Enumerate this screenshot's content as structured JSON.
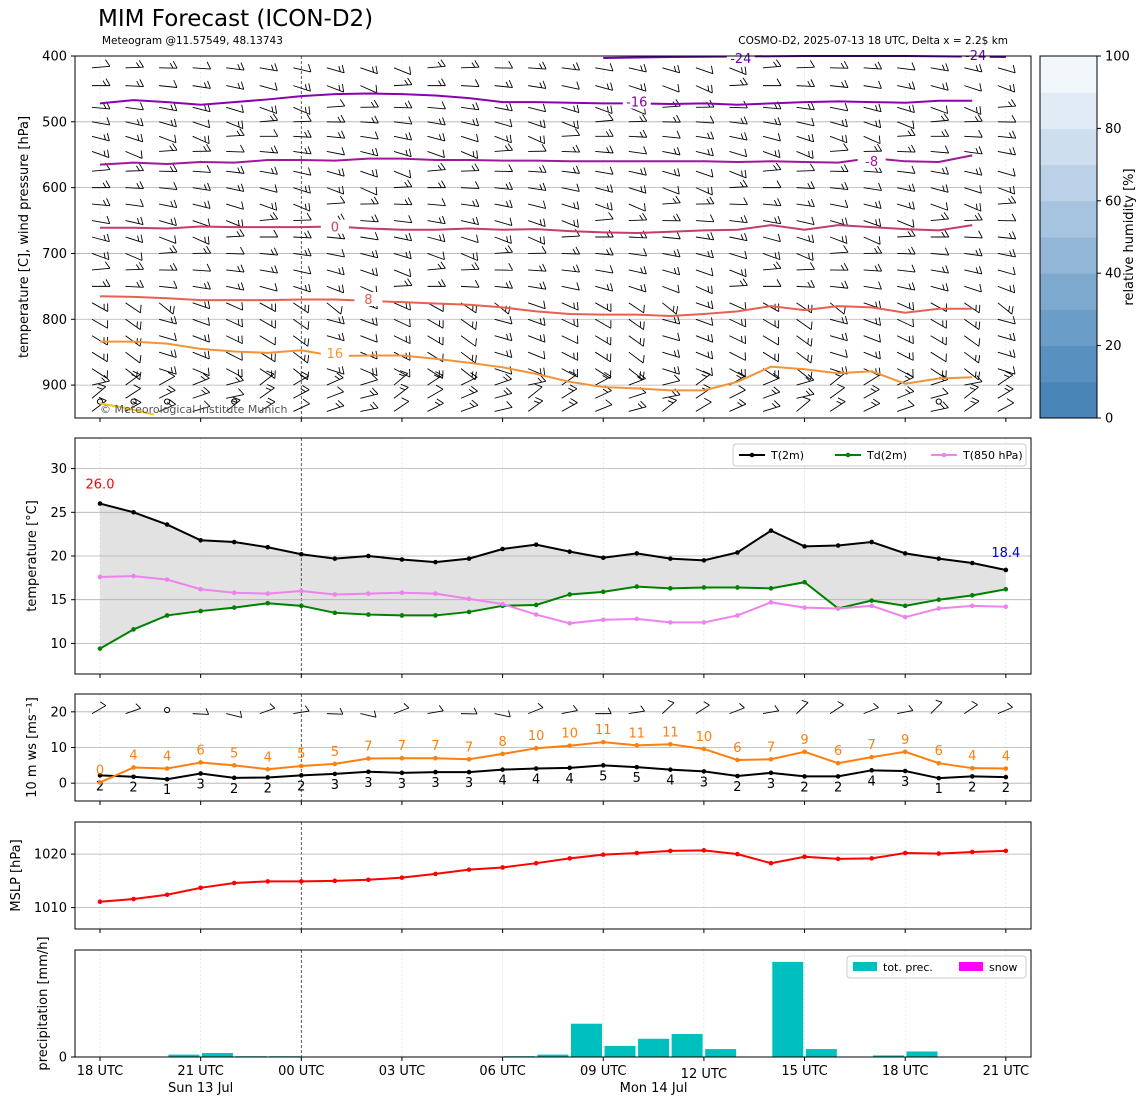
{
  "header": {
    "title": "MIM Forecast (ICON-D2)",
    "subtitle_left": "Meteogram @11.57549, 48.13743",
    "subtitle_right": "COSMO-D2, 2025-07-13 18 UTC, Delta x = 2.2$ km",
    "credit": "© Meteorological Institute Munich"
  },
  "colors": {
    "t2m": "#000000",
    "td2m": "#008000",
    "t850": "#ee82ee",
    "wind10": "#ff7f0e",
    "mslp": "#ff0000",
    "precip": "#00bfbf",
    "snow": "#ff00ff",
    "fill": "#e2e2e2",
    "rh_scale": [
      "#4a85b8",
      "#5890c0",
      "#6a9dc8",
      "#7ea9cf",
      "#92b6d7",
      "#a6c4df",
      "#bad1e7",
      "#cddfef",
      "#e0ebf6",
      "#f2f7fc"
    ]
  },
  "time_axis": {
    "ticks": [
      "18 UTC",
      "21 UTC",
      "00 UTC",
      "03 UTC",
      "06 UTC",
      "09 UTC",
      "12 UTC",
      "15 UTC",
      "18 UTC",
      "21 UTC"
    ],
    "day_labels": [
      "Sun 13 Jul",
      "Mon 14 Jul"
    ],
    "hours": [
      0,
      3,
      6,
      9,
      12,
      15,
      18,
      21,
      24,
      27
    ]
  },
  "chart_data": [
    {
      "type": "line",
      "panel": "upper-air",
      "ylabel": "temperature [C], wind pressure [hPa]",
      "y_ticks": [
        400,
        500,
        600,
        700,
        800,
        900
      ],
      "ylim": [
        950,
        400
      ],
      "y_inverted": true,
      "colorbar": {
        "label": "relative humidity [%]",
        "ticks": [
          0,
          20,
          40,
          60,
          80,
          100
        ]
      },
      "contour_labels": [
        "-24",
        "-24",
        "-16",
        "-8",
        "0",
        "8",
        "16"
      ],
      "isotherms": [
        {
          "level": "-16",
          "color": "#8b00b0",
          "p": [
            472,
            467,
            470,
            474,
            470,
            466,
            461,
            458,
            457,
            458,
            460,
            464,
            470,
            470,
            471,
            472,
            472,
            473,
            472,
            474,
            472,
            470,
            469,
            470,
            471,
            468,
            468
          ]
        },
        {
          "level": "-8",
          "color": "#a0189a",
          "p": [
            565,
            562,
            564,
            561,
            562,
            558,
            558,
            559,
            556,
            556,
            558,
            558,
            559,
            559,
            560,
            560,
            560,
            560,
            560,
            561,
            560,
            561,
            562,
            555,
            560,
            561,
            551
          ]
        },
        {
          "level": "0",
          "color": "#c53c70",
          "p": [
            661,
            661,
            662,
            659,
            660,
            660,
            660,
            659,
            662,
            664,
            664,
            662,
            664,
            663,
            666,
            668,
            669,
            667,
            665,
            664,
            657,
            664,
            657,
            660,
            663,
            665,
            657
          ]
        },
        {
          "level": "8",
          "color": "#e8604e",
          "p": [
            765,
            766,
            768,
            771,
            771,
            771,
            770,
            770,
            772,
            774,
            776,
            778,
            782,
            788,
            792,
            793,
            793,
            795,
            792,
            788,
            780,
            786,
            780,
            782,
            790,
            784,
            784
          ]
        },
        {
          "level": "16",
          "color": "#f39339",
          "p": [
            834,
            834,
            837,
            845,
            849,
            851,
            847,
            856,
            855,
            855,
            860,
            866,
            873,
            883,
            895,
            903,
            905,
            908,
            908,
            895,
            872,
            876,
            882,
            879,
            898,
            890,
            888
          ]
        }
      ]
    },
    {
      "type": "line",
      "panel": "surface-temperature",
      "ylabel": "temperature [$^\\circ$C]",
      "ylim": [
        6.5,
        33.5
      ],
      "y_ticks": [
        10,
        15,
        20,
        25,
        30
      ],
      "legend": "top-right",
      "annotations": {
        "max_label": "26.0",
        "last_label": "18.4"
      },
      "x_hours": [
        0,
        1,
        2,
        3,
        4,
        5,
        6,
        7,
        8,
        9,
        10,
        11,
        12,
        13,
        14,
        15,
        16,
        17,
        18,
        19,
        20,
        21,
        22,
        23,
        24,
        25,
        26,
        27
      ],
      "series": [
        {
          "name": "T(2m)",
          "values": [
            26.0,
            25.0,
            23.6,
            21.8,
            21.6,
            21.0,
            20.2,
            19.7,
            20.0,
            19.6,
            19.3,
            19.7,
            20.8,
            21.3,
            20.5,
            19.8,
            20.3,
            19.7,
            19.5,
            20.4,
            22.9,
            21.1,
            21.2,
            21.6,
            20.3,
            19.7,
            19.2,
            18.4
          ]
        },
        {
          "name": "Td(2m)",
          "values": [
            9.4,
            11.6,
            13.2,
            13.7,
            14.1,
            14.6,
            14.3,
            13.5,
            13.3,
            13.2,
            13.2,
            13.6,
            14.3,
            14.4,
            15.6,
            15.9,
            16.5,
            16.3,
            16.4,
            16.4,
            16.3,
            17.0,
            14.0,
            14.9,
            14.3,
            15.0,
            15.5,
            16.2
          ]
        },
        {
          "name": "T(850 hPa)",
          "values": [
            17.6,
            17.7,
            17.3,
            16.2,
            15.8,
            15.7,
            16.0,
            15.6,
            15.7,
            15.8,
            15.7,
            15.1,
            14.5,
            13.3,
            12.3,
            12.7,
            12.8,
            12.4,
            12.4,
            13.2,
            14.7,
            14.1,
            14.0,
            14.3,
            13.0,
            14.0,
            14.3,
            14.2
          ]
        }
      ]
    },
    {
      "type": "line",
      "panel": "wind-10m",
      "ylabel": "10 m ws [ms$^{-1}$]",
      "ylim": [
        -5,
        25
      ],
      "y_ticks": [
        0,
        10,
        20
      ],
      "x_hours": [
        0,
        1,
        2,
        3,
        4,
        5,
        6,
        7,
        8,
        9,
        10,
        11,
        12,
        13,
        14,
        15,
        16,
        17,
        18,
        19,
        20,
        21,
        22,
        23,
        24,
        25,
        26,
        27
      ],
      "series": [
        {
          "name": "wind speed",
          "values": [
            2.2,
            1.8,
            1.1,
            2.7,
            1.5,
            1.6,
            2.2,
            2.6,
            3.2,
            2.9,
            3.1,
            3.1,
            3.8,
            4.1,
            4.3,
            5.0,
            4.5,
            3.8,
            3.3,
            2.0,
            2.9,
            1.9,
            1.9,
            3.6,
            3.4,
            1.4,
            1.9,
            1.7
          ],
          "labels": [
            "2",
            "2",
            "1",
            "3",
            "2",
            "2",
            "2",
            "3",
            "3",
            "3",
            "3",
            "3",
            "4",
            "4",
            "4",
            "5",
            "5",
            "4",
            "3",
            "2",
            "3",
            "2",
            "2",
            "4",
            "3",
            "1",
            "2",
            "2"
          ]
        },
        {
          "name": "gusts",
          "values": [
            0.2,
            4.4,
            4.1,
            5.8,
            5.0,
            3.9,
            4.8,
            5.4,
            6.9,
            7.0,
            7.0,
            6.7,
            8.2,
            9.8,
            10.5,
            11.5,
            10.6,
            10.9,
            9.6,
            6.5,
            6.7,
            8.8,
            5.6,
            7.3,
            8.8,
            5.6,
            4.2,
            4.1
          ],
          "labels": [
            "0",
            "4",
            "4",
            "6",
            "5",
            "4",
            "5",
            "5",
            "7",
            "7",
            "7",
            "7",
            "8",
            "10",
            "10",
            "11",
            "11",
            "11",
            "10",
            "6",
            "7",
            "9",
            "6",
            "7",
            "9",
            "6",
            "4",
            "4"
          ]
        }
      ]
    },
    {
      "type": "line",
      "panel": "mslp",
      "ylabel": "MSLP [hPa]",
      "ylim": [
        1006,
        1026
      ],
      "y_ticks": [
        1010,
        1020
      ],
      "x_hours": [
        0,
        1,
        2,
        3,
        4,
        5,
        6,
        7,
        8,
        9,
        10,
        11,
        12,
        13,
        14,
        15,
        16,
        17,
        18,
        19,
        20,
        21,
        22,
        23,
        24,
        25,
        26,
        27
      ],
      "series": [
        {
          "name": "MSLP",
          "values": [
            1011.1,
            1011.6,
            1012.4,
            1013.7,
            1014.6,
            1014.9,
            1014.9,
            1015.0,
            1015.2,
            1015.6,
            1016.3,
            1017.1,
            1017.5,
            1018.3,
            1019.2,
            1019.9,
            1020.2,
            1020.6,
            1020.7,
            1020.0,
            1018.3,
            1019.5,
            1019.1,
            1019.2,
            1020.2,
            1020.1,
            1020.4,
            1020.6
          ]
        }
      ]
    },
    {
      "type": "bar",
      "panel": "precipitation",
      "ylabel": "precipitation [mm/h]",
      "y_ticks": [
        0
      ],
      "legend": "top-right",
      "x_hours": [
        0.5,
        1.5,
        2.5,
        3.5,
        4.5,
        5.5,
        6.5,
        7.5,
        8.5,
        9.5,
        10.5,
        11.5,
        12.5,
        13.5,
        14.5,
        15.5,
        16.5,
        17.5,
        18.5,
        19.5,
        20.5,
        21.5,
        22.5,
        23.5,
        24.5,
        25.5,
        26.5
      ],
      "series": [
        {
          "name": "tot. prec.",
          "values": [
            0,
            0,
            0.03,
            0.05,
            0.01,
            0.01,
            0,
            0,
            0,
            0,
            0,
            0,
            0.01,
            0.03,
            0.42,
            0.14,
            0.23,
            0.29,
            0.1,
            0,
            1.2,
            0.1,
            0,
            0.02,
            0.07,
            0,
            0
          ]
        },
        {
          "name": "snow",
          "values": [
            0,
            0,
            0,
            0,
            0,
            0,
            0,
            0,
            0,
            0,
            0,
            0,
            0,
            0,
            0,
            0,
            0,
            0,
            0,
            0,
            0,
            0,
            0,
            0,
            0,
            0,
            0
          ]
        }
      ]
    }
  ]
}
